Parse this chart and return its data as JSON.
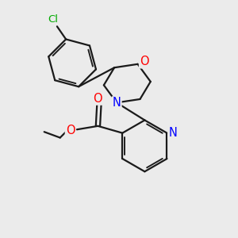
{
  "background_color": "#ebebeb",
  "bond_color": "#1a1a1a",
  "line_width": 1.6,
  "atom_colors": {
    "N": "#0000ff",
    "O": "#ff0000",
    "Cl": "#00aa00"
  },
  "font_size": 8.5,
  "figsize": [
    3.0,
    3.0
  ],
  "dpi": 100
}
